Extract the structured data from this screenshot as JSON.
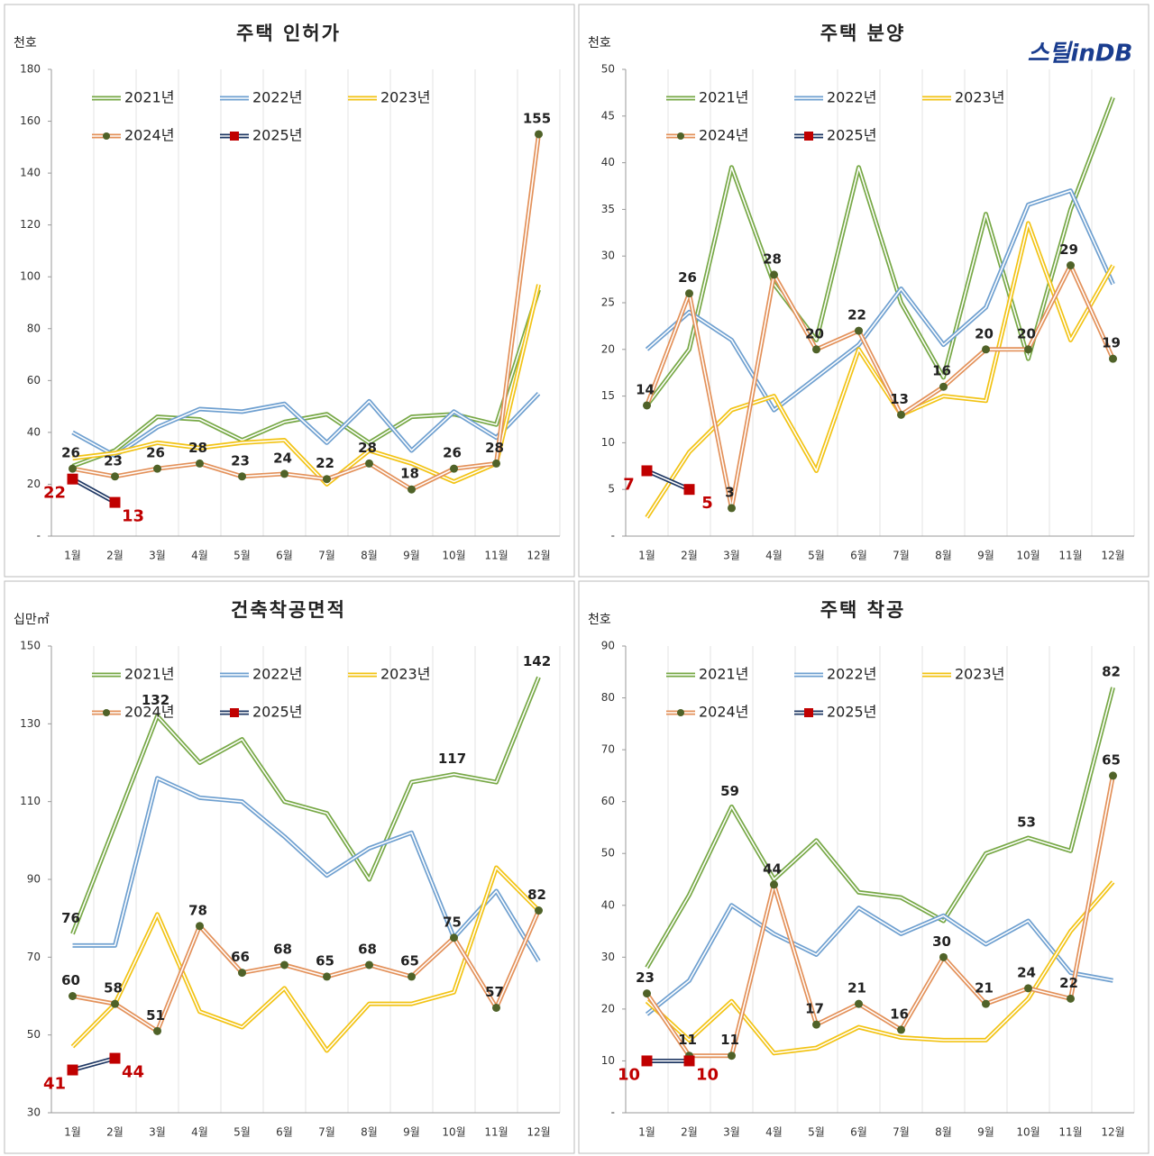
{
  "logo": "스틸inDB",
  "chart_data": [
    {
      "type": "line",
      "title": "주택 인허가",
      "y_label": "천호",
      "categories": [
        "1월",
        "2월",
        "3월",
        "4월",
        "5월",
        "6월",
        "7월",
        "8월",
        "9월",
        "10월",
        "11월",
        "12월"
      ],
      "ylim": [
        0,
        180
      ],
      "yticks": [
        {
          "value": 0,
          "label": "-"
        },
        20,
        40,
        60,
        80,
        100,
        120,
        140,
        160,
        180
      ],
      "series": [
        {
          "name": "2021년",
          "color": "#77a846",
          "values": [
            27,
            33,
            46,
            45,
            37,
            44,
            47,
            36,
            46,
            47,
            43,
            95
          ]
        },
        {
          "name": "2022년",
          "color": "#6fa0d0",
          "values": [
            40,
            31,
            42,
            49,
            48,
            51,
            36,
            52,
            33,
            48,
            38,
            55
          ]
        },
        {
          "name": "2023년",
          "color": "#f2c314",
          "values": [
            30,
            32,
            36,
            34,
            36,
            37,
            20,
            33,
            28,
            21,
            28,
            97
          ]
        },
        {
          "name": "2024년",
          "color": "#e3915a",
          "marker": "circle",
          "marker_color": "#4f6228",
          "values": [
            26,
            23,
            26,
            28,
            23,
            24,
            22,
            28,
            18,
            26,
            28,
            155
          ],
          "value_labels": [
            "26",
            "23",
            "26",
            "28",
            "23",
            "24",
            "22",
            "28",
            "18",
            "26",
            "28",
            "155"
          ]
        },
        {
          "name": "2025년",
          "color": "#1f3864",
          "marker": "square",
          "marker_color": "#c00000",
          "label_color": "#c00000",
          "values": [
            22,
            13,
            null,
            null,
            null,
            null,
            null,
            null,
            null,
            null,
            null,
            null
          ],
          "value_labels": [
            "22",
            "13",
            null,
            null,
            null,
            null,
            null,
            null,
            null,
            null,
            null,
            null
          ]
        }
      ]
    },
    {
      "type": "line",
      "title": "주택 분양",
      "y_label": "천호",
      "categories": [
        "1월",
        "2월",
        "3월",
        "4월",
        "5월",
        "6월",
        "7월",
        "8월",
        "9월",
        "10월",
        "11월",
        "12월"
      ],
      "ylim": [
        0,
        50
      ],
      "yticks": [
        {
          "value": 0,
          "label": "-"
        },
        5,
        10,
        15,
        20,
        25,
        30,
        35,
        40,
        45,
        50
      ],
      "series": [
        {
          "name": "2021년",
          "color": "#77a846",
          "values": [
            14,
            20,
            39.5,
            27,
            21,
            39.5,
            25,
            17,
            34.5,
            19,
            35,
            47
          ]
        },
        {
          "name": "2022년",
          "color": "#6fa0d0",
          "values": [
            20,
            24,
            21,
            13.5,
            17,
            20.5,
            26.5,
            20.5,
            24.5,
            35.5,
            37,
            27
          ]
        },
        {
          "name": "2023년",
          "color": "#f2c314",
          "values": [
            2,
            9,
            13.5,
            15,
            7,
            20,
            13,
            15,
            14.5,
            33.5,
            21,
            29
          ]
        },
        {
          "name": "2024년",
          "color": "#e3915a",
          "marker": "circle",
          "marker_color": "#4f6228",
          "values": [
            14,
            26,
            3,
            28,
            20,
            22,
            13,
            16,
            20,
            20,
            29,
            19
          ],
          "value_labels": [
            "14",
            "26",
            "3",
            "28",
            "20",
            "22",
            "13",
            "16",
            "20",
            "20",
            "29",
            "19"
          ]
        },
        {
          "name": "2025년",
          "color": "#1f3864",
          "marker": "square",
          "marker_color": "#c00000",
          "label_color": "#c00000",
          "values": [
            7,
            5,
            null,
            null,
            null,
            null,
            null,
            null,
            null,
            null,
            null,
            null
          ],
          "value_labels": [
            "7",
            "5",
            null,
            null,
            null,
            null,
            null,
            null,
            null,
            null,
            null,
            null
          ]
        }
      ]
    },
    {
      "type": "line",
      "title": "건축착공면적",
      "y_label": "십만㎡",
      "categories": [
        "1월",
        "2월",
        "3월",
        "4월",
        "5월",
        "6월",
        "7월",
        "8월",
        "9월",
        "10월",
        "11월",
        "12월"
      ],
      "ylim": [
        30,
        150
      ],
      "yticks": [
        30,
        50,
        70,
        90,
        110,
        130,
        150
      ],
      "series": [
        {
          "name": "2021년",
          "color": "#77a846",
          "values": [
            76,
            104,
            132,
            120,
            126,
            110,
            107,
            90,
            115,
            117,
            115,
            142
          ],
          "value_labels": [
            "76",
            null,
            "132",
            null,
            null,
            null,
            null,
            null,
            null,
            "117",
            null,
            "142"
          ]
        },
        {
          "name": "2022년",
          "color": "#6fa0d0",
          "values": [
            73,
            73,
            116,
            111,
            110,
            101,
            91,
            98,
            102,
            75,
            87,
            69
          ]
        },
        {
          "name": "2023년",
          "color": "#f2c314",
          "values": [
            47,
            58,
            81,
            56,
            52,
            62,
            46,
            58,
            58,
            61,
            93,
            82
          ]
        },
        {
          "name": "2024년",
          "color": "#e3915a",
          "marker": "circle",
          "marker_color": "#4f6228",
          "values": [
            60,
            58,
            51,
            78,
            66,
            68,
            65,
            68,
            65,
            75,
            57,
            82
          ],
          "value_labels": [
            "60",
            "58",
            "51",
            "78",
            "66",
            "68",
            "65",
            "68",
            "65",
            "75",
            "57",
            "82"
          ]
        },
        {
          "name": "2025년",
          "color": "#1f3864",
          "marker": "square",
          "marker_color": "#c00000",
          "label_color": "#c00000",
          "values": [
            41,
            44,
            null,
            null,
            null,
            null,
            null,
            null,
            null,
            null,
            null,
            null
          ],
          "value_labels": [
            "41",
            "44",
            null,
            null,
            null,
            null,
            null,
            null,
            null,
            null,
            null,
            null
          ]
        }
      ]
    },
    {
      "type": "line",
      "title": "주택 착공",
      "y_label": "천호",
      "categories": [
        "1월",
        "2월",
        "3월",
        "4월",
        "5월",
        "6월",
        "7월",
        "8월",
        "9월",
        "10월",
        "11월",
        "12월"
      ],
      "ylim": [
        0,
        90
      ],
      "yticks": [
        {
          "value": 0,
          "label": "-"
        },
        10,
        20,
        30,
        40,
        50,
        60,
        70,
        80,
        90
      ],
      "series": [
        {
          "name": "2021년",
          "color": "#77a846",
          "values": [
            28,
            42,
            59,
            45,
            52.5,
            42.5,
            41.5,
            37,
            50,
            53,
            50.5,
            82
          ],
          "value_labels": [
            null,
            null,
            "59",
            null,
            null,
            null,
            null,
            null,
            null,
            "53",
            null,
            "82"
          ]
        },
        {
          "name": "2022년",
          "color": "#6fa0d0",
          "values": [
            19,
            25.5,
            40,
            34.5,
            30.5,
            39.5,
            34.5,
            38,
            32.5,
            37,
            27,
            25.5
          ]
        },
        {
          "name": "2023년",
          "color": "#f2c314",
          "values": [
            21.5,
            14,
            21.5,
            11.5,
            12.5,
            16.5,
            14.5,
            14,
            14,
            22,
            35,
            44.5
          ]
        },
        {
          "name": "2024년",
          "color": "#e3915a",
          "marker": "circle",
          "marker_color": "#4f6228",
          "values": [
            23,
            11,
            11,
            44,
            17,
            21,
            16,
            30,
            21,
            24,
            22,
            65
          ],
          "value_labels": [
            "23",
            "11",
            "11",
            "44",
            "17",
            "21",
            "16",
            "30",
            "21",
            "24",
            "22",
            "65"
          ]
        },
        {
          "name": "2025년",
          "color": "#1f3864",
          "marker": "square",
          "marker_color": "#c00000",
          "label_color": "#c00000",
          "values": [
            10,
            10,
            null,
            null,
            null,
            null,
            null,
            null,
            null,
            null,
            null,
            null
          ],
          "value_labels": [
            "10",
            "10",
            null,
            null,
            null,
            null,
            null,
            null,
            null,
            null,
            null,
            null
          ]
        }
      ]
    }
  ]
}
